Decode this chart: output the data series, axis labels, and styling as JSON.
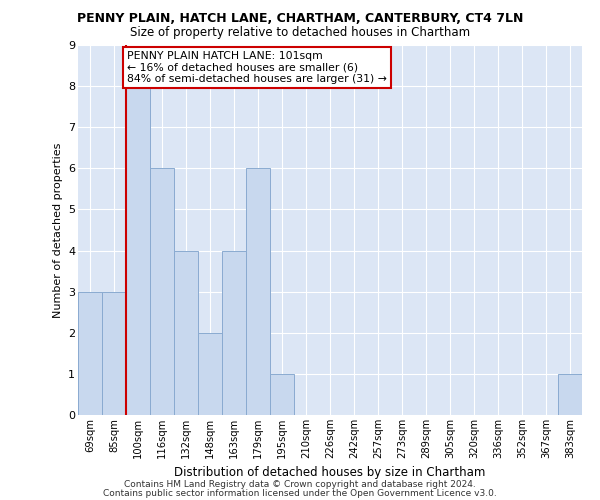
{
  "title": "PENNY PLAIN, HATCH LANE, CHARTHAM, CANTERBURY, CT4 7LN",
  "subtitle": "Size of property relative to detached houses in Chartham",
  "xlabel": "Distribution of detached houses by size in Chartham",
  "ylabel": "Number of detached properties",
  "categories": [
    "69sqm",
    "85sqm",
    "100sqm",
    "116sqm",
    "132sqm",
    "148sqm",
    "163sqm",
    "179sqm",
    "195sqm",
    "210sqm",
    "226sqm",
    "242sqm",
    "257sqm",
    "273sqm",
    "289sqm",
    "305sqm",
    "320sqm",
    "336sqm",
    "352sqm",
    "367sqm",
    "383sqm"
  ],
  "values": [
    3,
    3,
    8,
    6,
    4,
    2,
    4,
    6,
    1,
    0,
    0,
    0,
    0,
    0,
    0,
    0,
    0,
    0,
    0,
    0,
    1
  ],
  "bar_color": "#c8d8ee",
  "bar_edgecolor": "#8aaad0",
  "highlight_index": 2,
  "annotation_line1": "PENNY PLAIN HATCH LANE: 101sqm",
  "annotation_line2": "← 16% of detached houses are smaller (6)",
  "annotation_line3": "84% of semi-detached houses are larger (31) →",
  "annotation_box_color": "#ffffff",
  "annotation_box_edgecolor": "#cc0000",
  "vline_color": "#cc0000",
  "background_color": "#ffffff",
  "plot_bg_color": "#dce6f5",
  "grid_color": "#ffffff",
  "ylim": [
    0,
    9
  ],
  "yticks": [
    0,
    1,
    2,
    3,
    4,
    5,
    6,
    7,
    8,
    9
  ],
  "footer1": "Contains HM Land Registry data © Crown copyright and database right 2024.",
  "footer2": "Contains public sector information licensed under the Open Government Licence v3.0."
}
